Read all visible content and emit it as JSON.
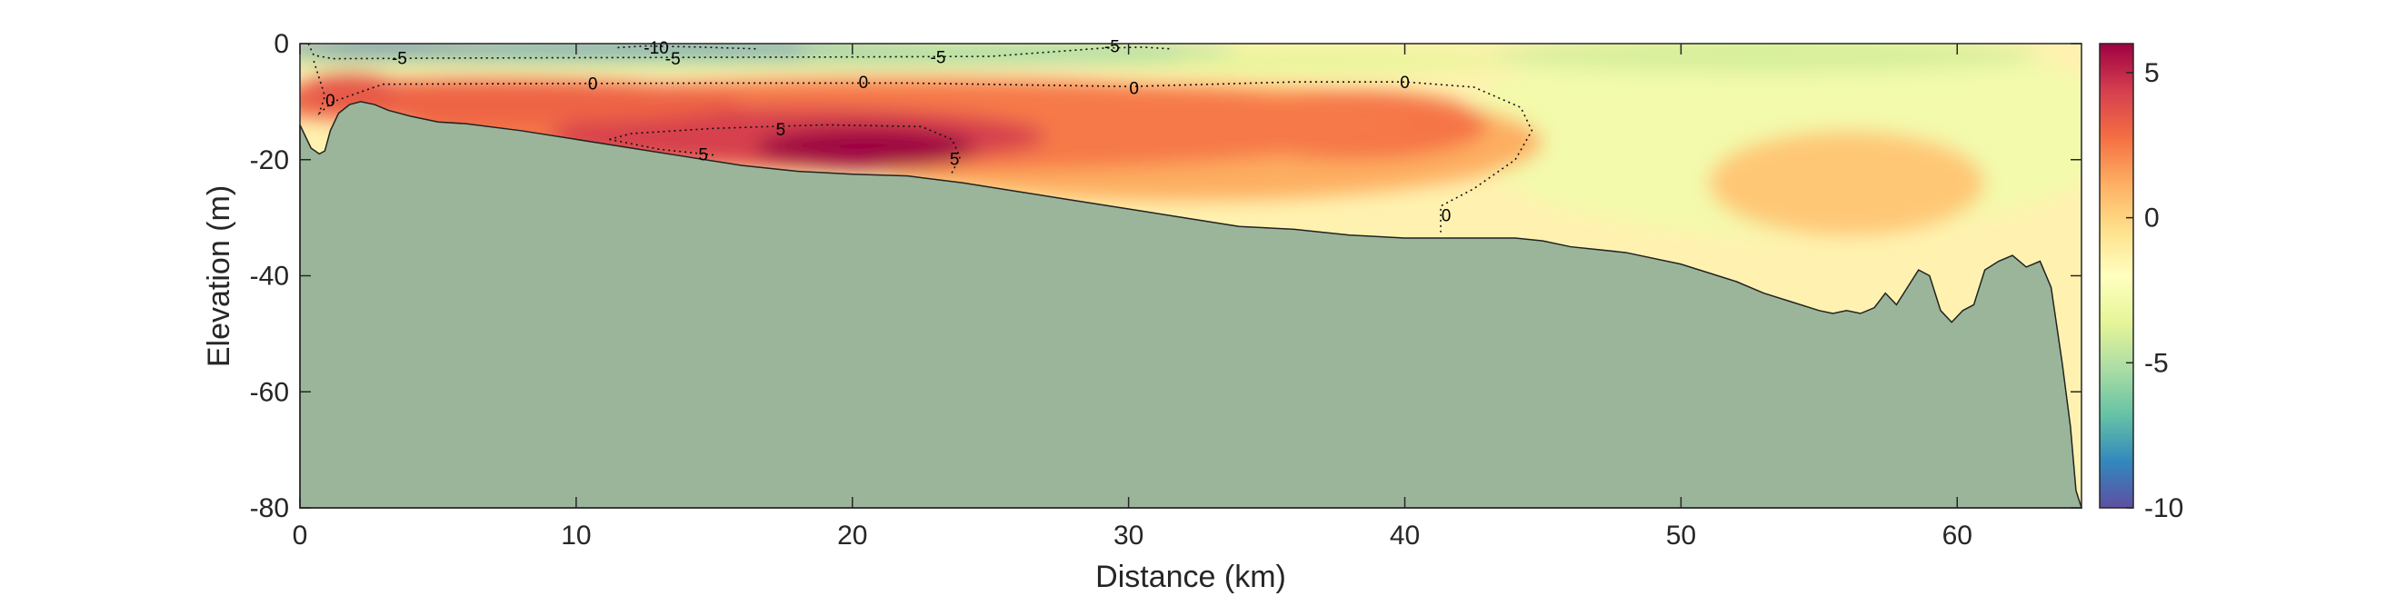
{
  "chart_data": {
    "type": "heatmap",
    "title": "",
    "xlabel": "Distance (km)",
    "ylabel": "Elevation (m)",
    "xlim": [
      0,
      64.5
    ],
    "ylim": [
      -80,
      0
    ],
    "xticks": [
      0,
      10,
      20,
      30,
      40,
      50,
      60
    ],
    "yticks": [
      0,
      -20,
      -40,
      -60,
      -80
    ],
    "colorbar": {
      "range": [
        -10,
        6
      ],
      "ticks": [
        5,
        0,
        -5,
        -10
      ],
      "colormap": [
        "#5e4fa2",
        "#3288bd",
        "#66c2a5",
        "#abdda4",
        "#e6f598",
        "#ffffbf",
        "#fee08b",
        "#fdae61",
        "#f46d43",
        "#d53e4f",
        "#9e0142"
      ]
    },
    "bathymetry": {
      "fill_color": "#9bb59b",
      "x": [
        0,
        0.4,
        0.7,
        0.9,
        1.1,
        1.4,
        1.8,
        2.2,
        2.7,
        3.2,
        4,
        5,
        6,
        8,
        10,
        12,
        14,
        16,
        18,
        20,
        22,
        24,
        26,
        28,
        30,
        32,
        34,
        36,
        38,
        40,
        42,
        44,
        45,
        46,
        48,
        50,
        52,
        53,
        54,
        55,
        55.5,
        56,
        56.5,
        57,
        57.4,
        57.8,
        58.2,
        58.6,
        59,
        59.4,
        59.8,
        60.2,
        60.6,
        61,
        61.5,
        62,
        62.5,
        63,
        63.4,
        63.8,
        64.1,
        64.3,
        64.5
      ],
      "z": [
        -14,
        -18,
        -19,
        -18.5,
        -15,
        -12,
        -10.5,
        -10,
        -10.5,
        -11.5,
        -12.5,
        -13.5,
        -13.8,
        -15,
        -16.5,
        -18,
        -19.5,
        -21,
        -22,
        -22.5,
        -22.8,
        -24,
        -25.5,
        -27,
        -28.5,
        -30,
        -31.5,
        -32,
        -33,
        -33.5,
        -33.5,
        -33.5,
        -34,
        -35,
        -36,
        -38,
        -41,
        -43,
        -44.5,
        -46,
        -46.5,
        -46,
        -46.5,
        -45.5,
        -43,
        -45,
        -42,
        -39,
        -40,
        -46,
        -48,
        -46,
        -45,
        -39,
        -37.5,
        -36.5,
        -38.5,
        -37.5,
        -42,
        -55,
        -66,
        -77,
        -80
      ]
    },
    "contours": [
      {
        "level": -10,
        "label": "-10",
        "labels_at": [
          [
            12.9,
            -0.6
          ]
        ]
      },
      {
        "level": -5,
        "label": "-5",
        "labels_at": [
          [
            3.6,
            -2.4
          ],
          [
            13.5,
            -2.5
          ],
          [
            23.1,
            -2.3
          ],
          [
            29.4,
            -0.4
          ]
        ]
      },
      {
        "level": 0,
        "label": "0",
        "labels_at": [
          [
            1.1,
            -9.7
          ],
          [
            10.6,
            -6.8
          ],
          [
            20.4,
            -6.6
          ],
          [
            30.2,
            -7.6
          ],
          [
            40,
            -6.6
          ],
          [
            41.5,
            -29.5
          ]
        ]
      },
      {
        "level": 5,
        "label": "5",
        "labels_at": [
          [
            14.6,
            -19
          ],
          [
            17.4,
            -14.7
          ],
          [
            23.7,
            -19.8
          ]
        ]
      }
    ]
  }
}
